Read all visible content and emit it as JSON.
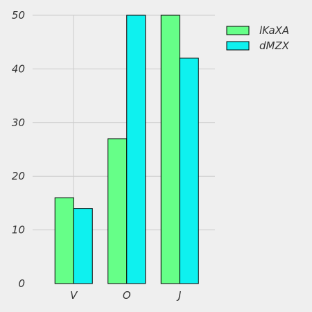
{
  "chart_data": {
    "type": "bar",
    "categories": [
      "V",
      "O",
      "J"
    ],
    "series": [
      {
        "name": "lKaXA",
        "values": [
          16,
          27,
          50
        ],
        "color": "#66ff88"
      },
      {
        "name": "dMZX",
        "values": [
          14,
          50,
          42
        ],
        "color": "#0ef1ef"
      }
    ],
    "ylim": [
      0,
      50
    ],
    "yticks": [
      0,
      10,
      20,
      30,
      40,
      50
    ],
    "grid": true,
    "legend": "top-right",
    "background": "#efefef",
    "grid_color": "#cbcbcb"
  }
}
